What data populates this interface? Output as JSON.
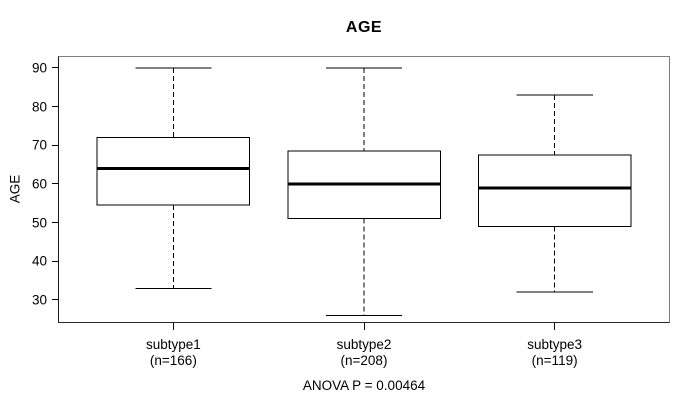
{
  "chart_data": {
    "type": "boxplot",
    "title": "AGE",
    "xlabel": "",
    "ylabel": "AGE",
    "yticks": [
      30,
      40,
      50,
      60,
      70,
      80,
      90
    ],
    "ylim": [
      24.3,
      92.8
    ],
    "xlim": [
      0.4,
      3.6
    ],
    "grid": false,
    "box_width": 0.8,
    "whisker_cap_width": 0.4,
    "groups": [
      {
        "label": "subtype1",
        "n_label": "(n=166)",
        "position": 1,
        "whisker_low": 33,
        "q1": 54.5,
        "median": 64,
        "q3": 72,
        "whisker_high": 90
      },
      {
        "label": "subtype2",
        "n_label": "(n=208)",
        "position": 2,
        "whisker_low": 26,
        "q1": 51,
        "median": 60,
        "q3": 68.5,
        "whisker_high": 90
      },
      {
        "label": "subtype3",
        "n_label": "(n=119)",
        "position": 3,
        "whisker_low": 32,
        "q1": 49,
        "median": 59,
        "q3": 67.5,
        "whisker_high": 83
      }
    ],
    "footnote": "ANOVA P = 0.00464",
    "colors": {
      "stroke": "#000000",
      "box_fill": "#ffffff",
      "background": "#ffffff",
      "frame_shadow": "#808080"
    }
  }
}
